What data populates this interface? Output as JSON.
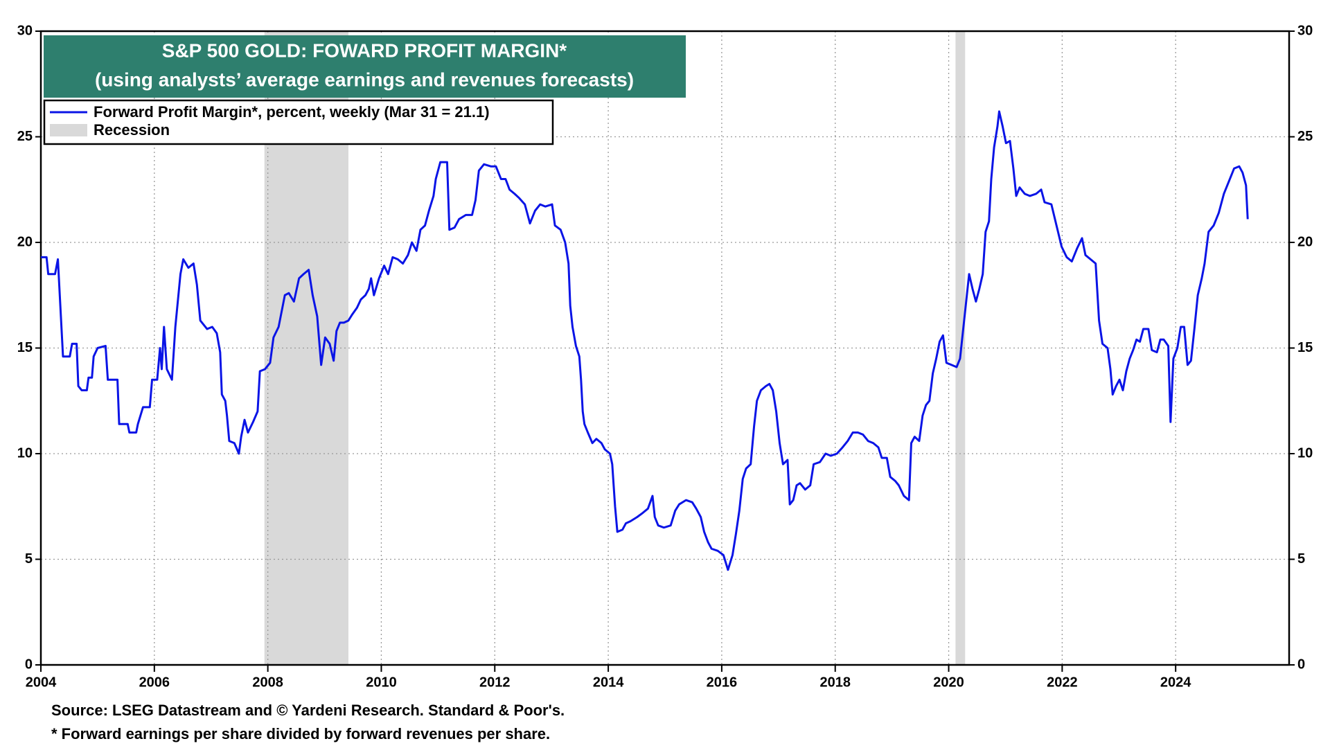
{
  "chart_data": {
    "type": "line",
    "title": "S&P 500 GOLD: FOWARD PROFIT MARGIN*",
    "subtitle": "(using analysts’ average earnings and revenues forecasts)",
    "source": "Source: LSEG Datastream and © Yardeni Research. Standard & Poor's.",
    "footnote": "* Forward earnings per share divided by forward revenues per share.",
    "recession_label": "Recession",
    "recession_color": "#d9d9d9",
    "recessions": [
      [
        2007.94,
        2009.42
      ],
      [
        2020.12,
        2020.29
      ]
    ],
    "xlim": [
      2004,
      2026
    ],
    "xticks": [
      2004,
      2006,
      2008,
      2010,
      2012,
      2014,
      2016,
      2018,
      2020,
      2022,
      2024
    ],
    "ylim": [
      0,
      30
    ],
    "yticks": [
      0,
      5,
      10,
      15,
      20,
      25,
      30
    ],
    "y2lim": [
      0,
      30
    ],
    "y2ticks": [
      0,
      5,
      10,
      15,
      20,
      25,
      30
    ],
    "grid": true,
    "legend": "top-left",
    "x": [
      2004.0,
      2004.1,
      2004.13,
      2004.25,
      2004.3,
      2004.39,
      2004.51,
      2004.55,
      2004.63,
      2004.66,
      2004.72,
      2004.81,
      2004.84,
      2004.9,
      2004.93,
      2005.0,
      2005.14,
      2005.18,
      2005.35,
      2005.38,
      2005.53,
      2005.56,
      2005.68,
      2005.71,
      2005.8,
      2005.92,
      2005.96,
      2006.05,
      2006.1,
      2006.13,
      2006.17,
      2006.22,
      2006.31,
      2006.37,
      2006.46,
      2006.51,
      2006.6,
      2006.69,
      2006.75,
      2006.81,
      2006.93,
      2007.02,
      2007.1,
      2007.16,
      2007.19,
      2007.25,
      2007.28,
      2007.32,
      2007.41,
      2007.49,
      2007.53,
      2007.59,
      2007.65,
      2007.74,
      2007.82,
      2007.86,
      2007.95,
      2008.04,
      2008.1,
      2008.19,
      2008.3,
      2008.37,
      2008.46,
      2008.55,
      2008.63,
      2008.72,
      2008.79,
      2008.87,
      2008.94,
      2009.01,
      2009.09,
      2009.16,
      2009.21,
      2009.27,
      2009.34,
      2009.42,
      2009.49,
      2009.57,
      2009.64,
      2009.72,
      2009.78,
      2009.82,
      2009.87,
      2009.96,
      2010.05,
      2010.12,
      2010.2,
      2010.29,
      2010.38,
      2010.47,
      2010.54,
      2010.62,
      2010.69,
      2010.77,
      2010.84,
      2010.92,
      2010.96,
      2011.04,
      2011.16,
      2011.2,
      2011.29,
      2011.37,
      2011.49,
      2011.6,
      2011.66,
      2011.72,
      2011.81,
      2011.93,
      2012.02,
      2012.11,
      2012.19,
      2012.26,
      2012.35,
      2012.43,
      2012.53,
      2012.62,
      2012.71,
      2012.8,
      2012.89,
      2013.01,
      2013.06,
      2013.16,
      2013.24,
      2013.3,
      2013.33,
      2013.37,
      2013.43,
      2013.49,
      2013.52,
      2013.55,
      2013.58,
      2013.64,
      2013.72,
      2013.79,
      2013.88,
      2013.94,
      2014.03,
      2014.07,
      2014.12,
      2014.16,
      2014.25,
      2014.31,
      2014.39,
      2014.51,
      2014.61,
      2014.7,
      2014.78,
      2014.82,
      2014.88,
      2014.98,
      2015.1,
      2015.18,
      2015.25,
      2015.37,
      2015.48,
      2015.55,
      2015.63,
      2015.69,
      2015.76,
      2015.82,
      2015.93,
      2016.03,
      2016.11,
      2016.19,
      2016.25,
      2016.31,
      2016.37,
      2016.43,
      2016.51,
      2016.57,
      2016.62,
      2016.69,
      2016.78,
      2016.84,
      2016.9,
      2016.96,
      2017.02,
      2017.08,
      2017.16,
      2017.2,
      2017.26,
      2017.32,
      2017.38,
      2017.47,
      2017.56,
      2017.62,
      2017.73,
      2017.83,
      2017.92,
      2018.03,
      2018.13,
      2018.22,
      2018.31,
      2018.4,
      2018.49,
      2018.58,
      2018.67,
      2018.76,
      2018.82,
      2018.91,
      2018.97,
      2019.06,
      2019.12,
      2019.21,
      2019.3,
      2019.34,
      2019.4,
      2019.48,
      2019.54,
      2019.6,
      2019.66,
      2019.72,
      2019.78,
      2019.84,
      2019.9,
      2019.96,
      2020.05,
      2020.14,
      2020.2,
      2020.26,
      2020.32,
      2020.36,
      2020.42,
      2020.48,
      2020.54,
      2020.6,
      2020.65,
      2020.71,
      2020.75,
      2020.8,
      2020.86,
      2020.89,
      2020.95,
      2021.01,
      2021.08,
      2021.14,
      2021.19,
      2021.25,
      2021.34,
      2021.43,
      2021.54,
      2021.63,
      2021.69,
      2021.81,
      2021.9,
      2021.99,
      2022.08,
      2022.17,
      2022.26,
      2022.35,
      2022.41,
      2022.5,
      2022.59,
      2022.65,
      2022.71,
      2022.8,
      2022.85,
      2022.89,
      2022.95,
      2023.01,
      2023.07,
      2023.13,
      2023.19,
      2023.25,
      2023.31,
      2023.37,
      2023.43,
      2023.52,
      2023.58,
      2023.67,
      2023.73,
      2023.79,
      2023.87,
      2023.91,
      2023.96,
      2024.03,
      2024.09,
      2024.15,
      2024.21,
      2024.27,
      2024.33,
      2024.39,
      2024.46,
      2024.51,
      2024.58,
      2024.67,
      2024.76,
      2024.85,
      2024.94,
      2025.03,
      2025.12,
      2025.18,
      2025.24,
      2025.27
    ],
    "series": [
      {
        "name": "Forward Profit Margin*, percent, weekly (Mar 31 = 21.1)",
        "color": "#0a14e6",
        "values": [
          19.3,
          19.3,
          18.5,
          18.5,
          19.2,
          14.6,
          14.6,
          15.2,
          15.2,
          13.2,
          13.0,
          13.0,
          13.6,
          13.6,
          14.6,
          15.0,
          15.1,
          13.5,
          13.5,
          11.4,
          11.4,
          11.0,
          11.0,
          11.4,
          12.2,
          12.2,
          13.5,
          13.5,
          15.0,
          14.0,
          16.0,
          14.0,
          13.5,
          16.0,
          18.5,
          19.2,
          18.8,
          19.0,
          18.0,
          16.3,
          15.9,
          16.0,
          15.7,
          14.8,
          12.8,
          12.5,
          11.8,
          10.6,
          10.5,
          10.0,
          10.8,
          11.6,
          11.0,
          11.5,
          12.0,
          13.9,
          14.0,
          14.3,
          15.5,
          16.0,
          17.5,
          17.6,
          17.2,
          18.3,
          18.5,
          18.7,
          17.5,
          16.5,
          14.2,
          15.5,
          15.2,
          14.4,
          15.8,
          16.2,
          16.2,
          16.3,
          16.6,
          16.9,
          17.3,
          17.5,
          17.8,
          18.3,
          17.5,
          18.3,
          18.9,
          18.5,
          19.3,
          19.2,
          19.0,
          19.4,
          20.0,
          19.6,
          20.6,
          20.8,
          21.5,
          22.2,
          23.0,
          23.8,
          23.8,
          20.6,
          20.7,
          21.1,
          21.3,
          21.3,
          22.0,
          23.4,
          23.7,
          23.6,
          23.6,
          23.0,
          23.0,
          22.5,
          22.3,
          22.1,
          21.8,
          20.9,
          21.5,
          21.8,
          21.7,
          21.8,
          20.8,
          20.6,
          20.0,
          19.0,
          17.0,
          16.0,
          15.1,
          14.6,
          13.5,
          12.0,
          11.4,
          11.0,
          10.5,
          10.7,
          10.5,
          10.2,
          10.0,
          9.5,
          7.5,
          6.3,
          6.4,
          6.7,
          6.8,
          7.0,
          7.2,
          7.4,
          8.0,
          7.0,
          6.6,
          6.5,
          6.6,
          7.3,
          7.6,
          7.8,
          7.7,
          7.4,
          7.0,
          6.3,
          5.8,
          5.5,
          5.4,
          5.2,
          4.5,
          5.2,
          6.2,
          7.3,
          8.8,
          9.3,
          9.5,
          11.3,
          12.5,
          13.0,
          13.2,
          13.3,
          13.0,
          12.0,
          10.5,
          9.5,
          9.7,
          7.6,
          7.8,
          8.5,
          8.6,
          8.3,
          8.5,
          9.5,
          9.6,
          10.0,
          9.9,
          10.0,
          10.3,
          10.6,
          11.0,
          11.0,
          10.9,
          10.6,
          10.5,
          10.3,
          9.8,
          9.8,
          8.9,
          8.7,
          8.5,
          8.0,
          7.8,
          10.5,
          10.8,
          10.6,
          11.8,
          12.3,
          12.5,
          13.8,
          14.5,
          15.3,
          15.6,
          14.3,
          14.2,
          14.1,
          14.5,
          16.0,
          17.5,
          18.5,
          17.8,
          17.2,
          17.8,
          18.5,
          20.5,
          21.0,
          23.0,
          24.5,
          25.5,
          26.2,
          25.5,
          24.7,
          24.8,
          23.5,
          22.2,
          22.6,
          22.3,
          22.2,
          22.3,
          22.5,
          21.9,
          21.8,
          20.8,
          19.8,
          19.3,
          19.1,
          19.7,
          20.2,
          19.4,
          19.2,
          19.0,
          16.3,
          15.2,
          15.0,
          14.0,
          12.8,
          13.2,
          13.5,
          13.0,
          13.9,
          14.5,
          14.9,
          15.4,
          15.3,
          15.9,
          15.9,
          14.9,
          14.8,
          15.4,
          15.4,
          15.1,
          11.5,
          14.5,
          15.0,
          16.0,
          16.0,
          14.2,
          14.4,
          15.9,
          17.5,
          18.3,
          19.0,
          20.5,
          20.8,
          21.4,
          22.3,
          22.9,
          23.5,
          23.6,
          23.3,
          22.7,
          21.1
        ]
      }
    ]
  }
}
